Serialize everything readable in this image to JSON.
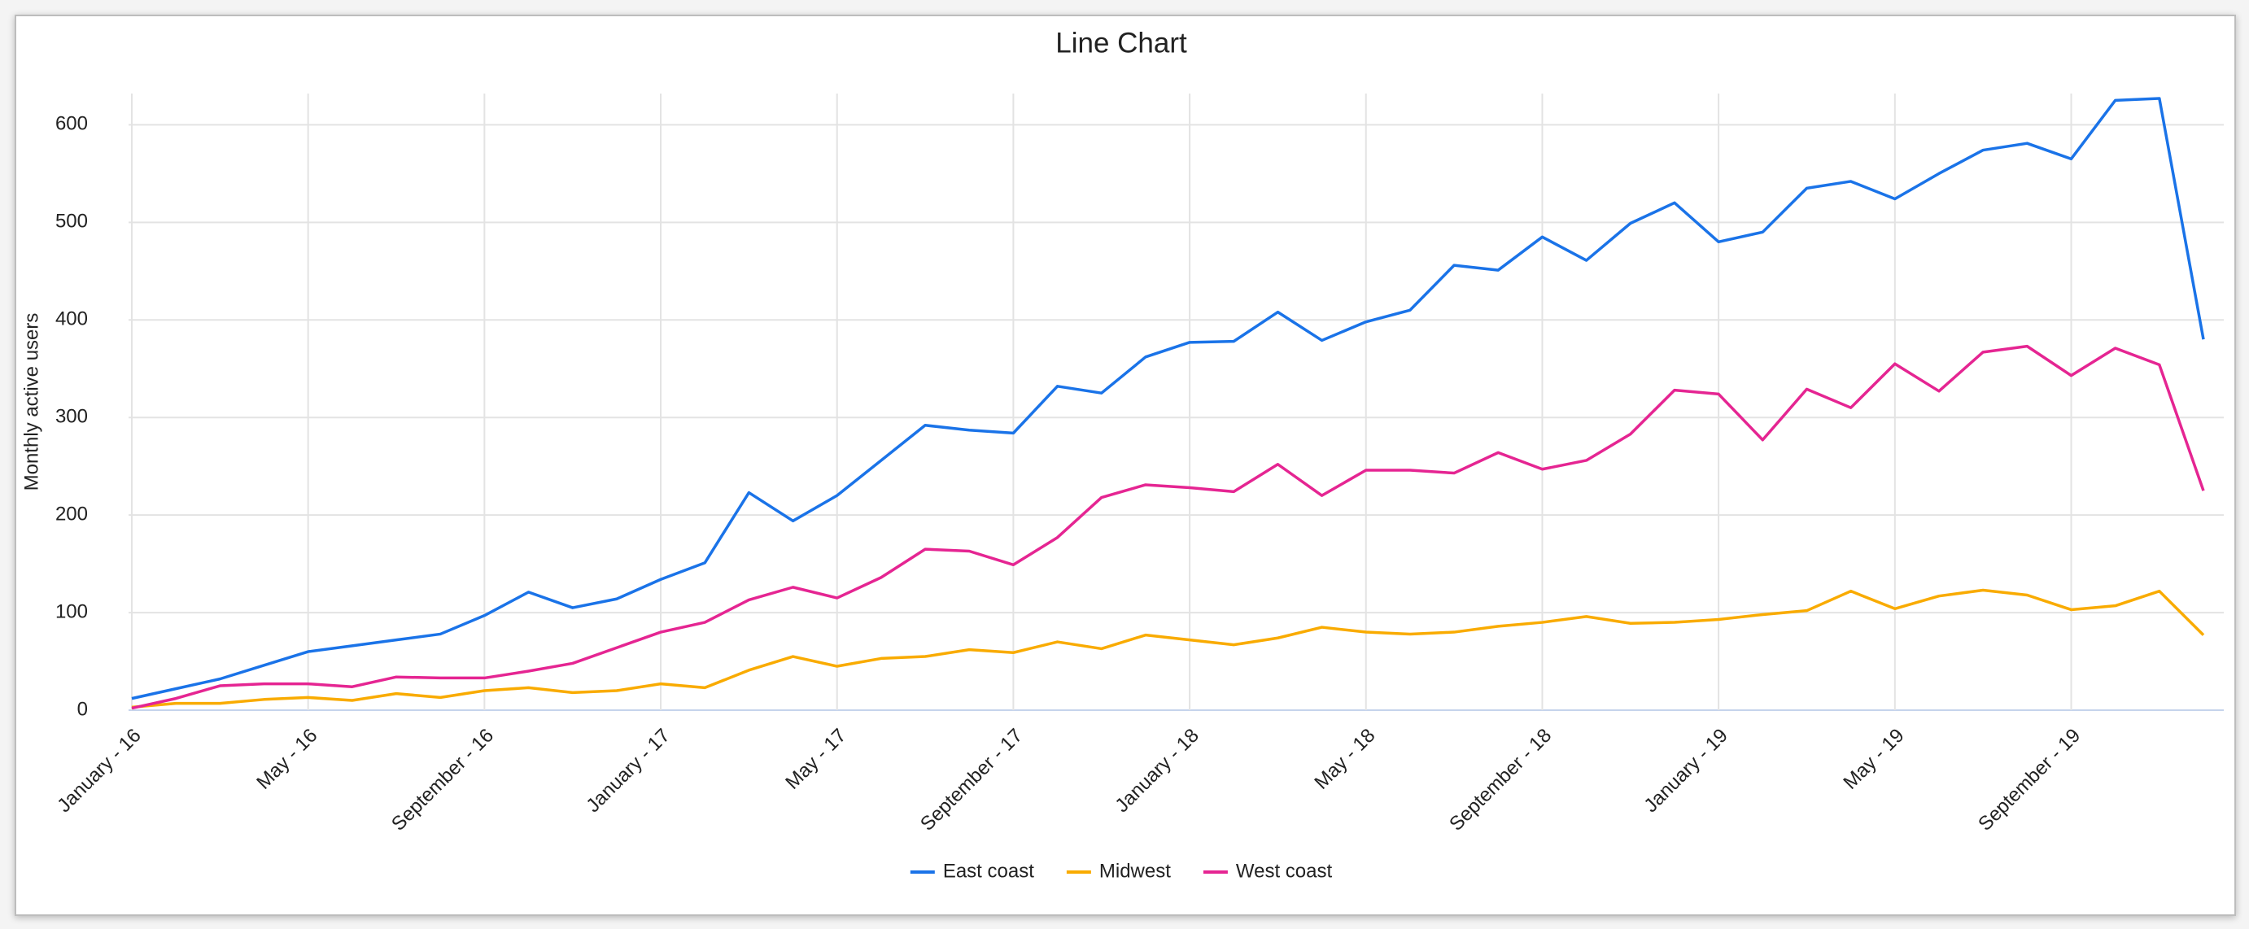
{
  "chart_data": {
    "type": "line",
    "title": "Line Chart",
    "y_label": "Monthly active users",
    "categories": [
      "January - 16",
      null,
      null,
      null,
      "May - 16",
      null,
      null,
      null,
      "September - 16",
      null,
      null,
      null,
      "January - 17",
      null,
      null,
      null,
      "May - 17",
      null,
      null,
      null,
      "September - 17",
      null,
      null,
      null,
      "January - 18",
      null,
      null,
      null,
      "May - 18",
      null,
      null,
      null,
      "September - 18",
      null,
      null,
      null,
      "January - 19",
      null,
      null,
      null,
      "May - 19",
      null,
      null,
      null,
      "September - 19",
      null,
      null,
      null
    ],
    "series": [
      {
        "name": "East coast",
        "color": "#1a73e8",
        "values": [
          12,
          22,
          32,
          46,
          60,
          66,
          72,
          78,
          97,
          121,
          105,
          114,
          134,
          151,
          223,
          194,
          220,
          256,
          292,
          287,
          284,
          332,
          325,
          362,
          377,
          378,
          408,
          379,
          398,
          410,
          456,
          451,
          485,
          461,
          499,
          520,
          480,
          490,
          535,
          542,
          524,
          550,
          574,
          581,
          565,
          625,
          627,
          380
        ]
      },
      {
        "name": "Midwest",
        "color": "#f9ab00",
        "values": [
          3,
          7,
          7,
          11,
          13,
          10,
          17,
          13,
          20,
          23,
          18,
          20,
          27,
          23,
          41,
          55,
          45,
          53,
          55,
          62,
          59,
          70,
          63,
          77,
          72,
          67,
          74,
          85,
          80,
          78,
          80,
          86,
          90,
          96,
          89,
          90,
          93,
          98,
          102,
          122,
          104,
          117,
          123,
          118,
          103,
          107,
          122,
          77
        ]
      },
      {
        "name": "West coast",
        "color": "#e52592",
        "values": [
          2,
          12,
          25,
          27,
          27,
          24,
          34,
          33,
          33,
          40,
          48,
          64,
          80,
          90,
          113,
          126,
          115,
          136,
          165,
          163,
          149,
          177,
          218,
          231,
          228,
          224,
          252,
          220,
          246,
          246,
          243,
          264,
          247,
          256,
          283,
          328,
          324,
          277,
          329,
          310,
          355,
          327,
          367,
          373,
          343,
          371,
          354,
          225
        ]
      }
    ],
    "ylim": [
      0,
      632
    ],
    "yticks": [
      0,
      100,
      200,
      300,
      400,
      500,
      600
    ],
    "grid": true,
    "legend": "bottom"
  }
}
